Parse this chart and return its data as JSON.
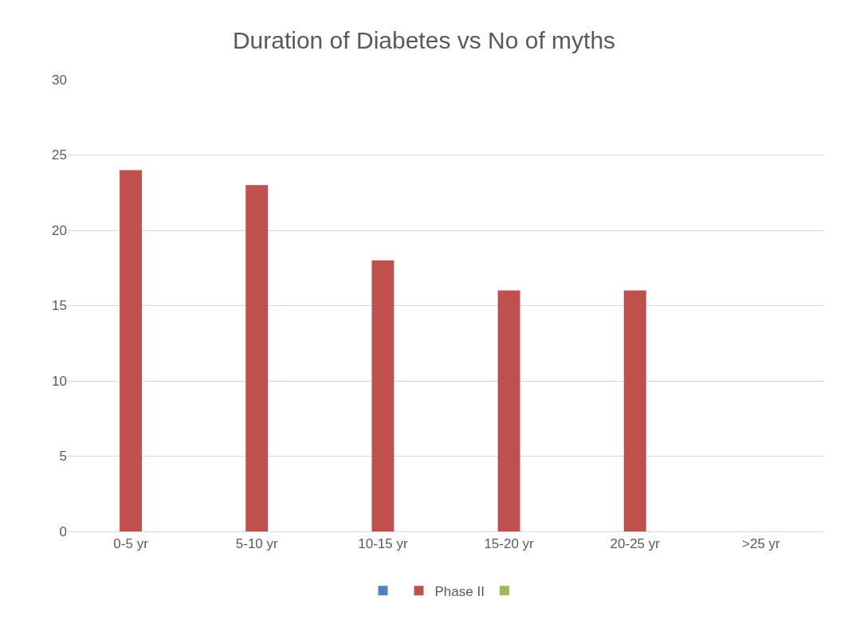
{
  "chart_data": {
    "type": "bar",
    "title": "Duration of Diabetes vs No of myths",
    "categories": [
      "0-5 yr",
      "5-10 yr",
      "10-15 yr",
      "15-20 yr",
      "20-25 yr",
      ">25 yr"
    ],
    "series": [
      {
        "color": "#4f81bd",
        "values": [
          null,
          null,
          null,
          null,
          null,
          null
        ]
      },
      {
        "name": "Phase II",
        "color": "#c0504d",
        "values": [
          24,
          23,
          18,
          16,
          16,
          null
        ]
      },
      {
        "color": "#9bbb59",
        "values": [
          null,
          null,
          null,
          null,
          null,
          null
        ]
      }
    ],
    "ylim": [
      0,
      30
    ],
    "yticks": [
      0,
      5,
      10,
      15,
      20,
      25,
      30
    ],
    "grid": "y",
    "legend": "bottom"
  }
}
